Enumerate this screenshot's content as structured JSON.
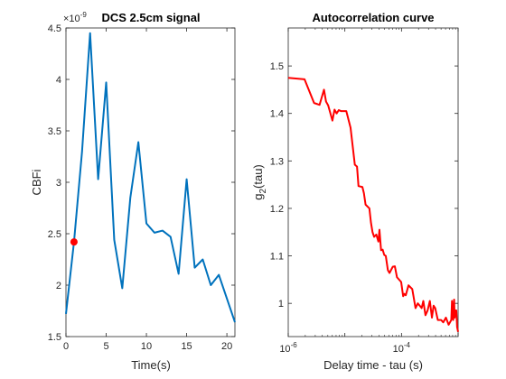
{
  "chart_data": [
    {
      "type": "line",
      "title": "DCS 2.5cm signal",
      "xlabel": "Time(s)",
      "ylabel": "CBFi",
      "y_multiplier": "×10",
      "y_exponent": "-9",
      "xlim": [
        0,
        21
      ],
      "ylim": [
        1.5e-09,
        4.5e-09
      ],
      "xticks": [
        0,
        5,
        10,
        15,
        20
      ],
      "xtick_labels": [
        "0",
        "5",
        "10",
        "15",
        "20"
      ],
      "yticks": [
        1.5e-09,
        2e-09,
        2.5e-09,
        3e-09,
        3.5e-09,
        4e-09,
        4.5e-09
      ],
      "ytick_labels": [
        "1.5",
        "2",
        "2.5",
        "3",
        "3.5",
        "4",
        "4.5"
      ],
      "grid": false,
      "series": [
        {
          "color": "#0072BD",
          "x": [
            0,
            1,
            2,
            3,
            4,
            5,
            6,
            7,
            8,
            9,
            10,
            11,
            12,
            13,
            14,
            15,
            16,
            17,
            18,
            19,
            20,
            21
          ],
          "y": [
            1.72e-09,
            2.42e-09,
            3.3e-09,
            4.45e-09,
            3.03e-09,
            3.97e-09,
            2.44e-09,
            1.97e-09,
            2.85e-09,
            3.39e-09,
            2.6e-09,
            2.51e-09,
            2.53e-09,
            2.47e-09,
            2.11e-09,
            3.03e-09,
            2.17e-09,
            2.25e-09,
            2e-09,
            2.1e-09,
            1.87e-09,
            1.64e-09
          ]
        }
      ],
      "marker": {
        "x": 1,
        "y": 2.42e-09,
        "color": "#FF0000"
      }
    },
    {
      "type": "line",
      "title": "Autocorrelation curve",
      "xlabel": "Delay time - tau (s)",
      "ylabel_main": "g",
      "ylabel_sub": "2",
      "ylabel_tail": "(tau)",
      "xscale": "log",
      "xlim": [
        1e-06,
        0.001
      ],
      "ylim": [
        0.93,
        1.58
      ],
      "xticks": [
        1e-06,
        0.0001
      ],
      "xtick_base": "10",
      "xtick_exponents": [
        "-6",
        "-4"
      ],
      "yticks": [
        1.0,
        1.1,
        1.2,
        1.3,
        1.4,
        1.5
      ],
      "ytick_labels": [
        "1",
        "1.1",
        "1.2",
        "1.3",
        "1.4",
        "1.5"
      ],
      "grid": false,
      "series": [
        {
          "color": "#FF0000",
          "x": [
            1e-06,
            1.94e-06,
            2.86e-06,
            3.57e-06,
            4.28e-06,
            4.65e-06,
            5.07e-06,
            6.03e-06,
            6.57e-06,
            7.16e-06,
            7.81e-06,
            8.51e-06,
            1.06e-05,
            1.26e-05,
            1.5e-05,
            1.64e-05,
            1.74e-05,
            2.04e-05,
            2.17e-05,
            2.32e-05,
            2.71e-05,
            2.89e-05,
            3.08e-05,
            3.29e-05,
            3.59e-05,
            3.91e-05,
            4.08e-05,
            4.36e-05,
            4.65e-05,
            4.96e-05,
            5.28e-05,
            5.75e-05,
            6.14e-05,
            7e-05,
            7.64e-05,
            8.32e-05,
            9.07e-05,
            9.87e-05,
            0.000107,
            0.000112,
            0.000119,
            0.000133,
            0.000155,
            0.000177,
            0.000194,
            0.000227,
            0.000243,
            0.000265,
            0.000289,
            0.000317,
            0.000345,
            0.000369,
            0.000394,
            0.000438,
            0.0005,
            0.000546,
            0.000609,
            0.00068,
            0.000758,
            0.00078,
            0.0008,
            0.00082,
            0.00085,
            0.00087,
            0.0009,
            0.00093,
            0.00096,
            0.001
          ],
          "y": [
            1.475,
            1.472,
            1.422,
            1.418,
            1.45,
            1.425,
            1.417,
            1.385,
            1.408,
            1.4,
            1.407,
            1.405,
            1.405,
            1.37,
            1.292,
            1.288,
            1.247,
            1.245,
            1.232,
            1.208,
            1.2,
            1.17,
            1.15,
            1.14,
            1.145,
            1.13,
            1.155,
            1.112,
            1.113,
            1.102,
            1.1,
            1.07,
            1.064,
            1.077,
            1.078,
            1.055,
            1.05,
            1.045,
            1.015,
            1.02,
            1.017,
            1.038,
            1.03,
            0.99,
            1.0,
            0.99,
            1.005,
            0.975,
            0.985,
            1.005,
            0.97,
            0.995,
            0.99,
            0.965,
            0.965,
            0.96,
            0.97,
            0.955,
            0.965,
            1.005,
            0.98,
            0.965,
            1.008,
            0.97,
            0.985,
            0.985,
            0.95,
            0.94
          ]
        }
      ]
    }
  ]
}
